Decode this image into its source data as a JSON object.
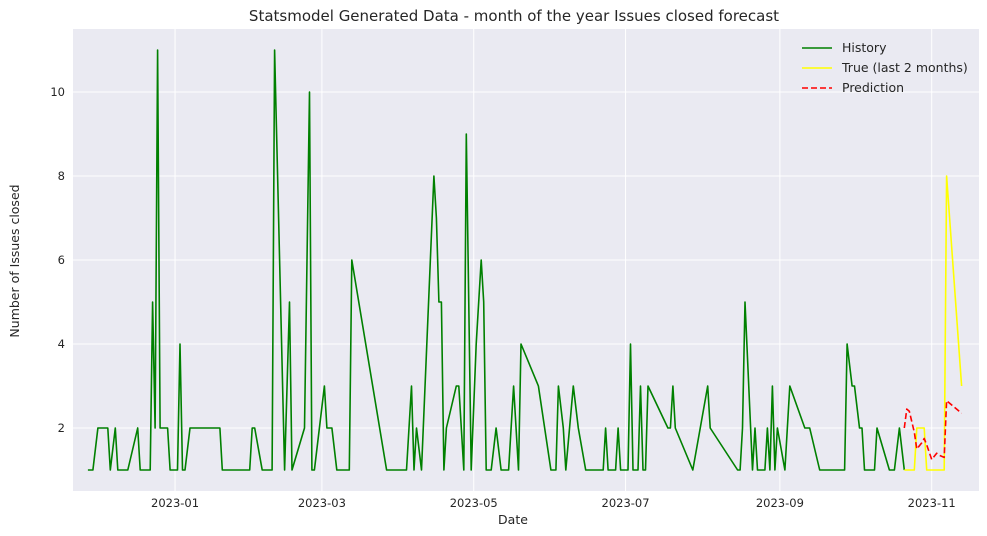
{
  "chart_data": {
    "type": "line",
    "title": "Statsmodel Generated Data - month of the year Issues closed forecast",
    "xlabel": "Date",
    "ylabel": "Number of Issues closed",
    "xlim": [
      "2022-11-21",
      "2023-11-20"
    ],
    "ylim": [
      0.5,
      11.5
    ],
    "yticks": [
      2,
      4,
      6,
      8,
      10
    ],
    "xticks": [
      "2023-01-01",
      "2023-03-01",
      "2023-05-01",
      "2023-07-01",
      "2023-09-01",
      "2023-11-01"
    ],
    "xtick_labels": [
      "2023-01",
      "2023-03",
      "2023-05",
      "2023-07",
      "2023-09",
      "2023-11"
    ],
    "grid": true,
    "legend_position": "top-right",
    "background": "#eaeaf2",
    "series": [
      {
        "name": "History",
        "color": "#008000",
        "style": "solid",
        "points": [
          [
            "2022-11-27",
            1
          ],
          [
            "2022-11-29",
            1
          ],
          [
            "2022-12-01",
            2
          ],
          [
            "2022-12-05",
            2
          ],
          [
            "2022-12-06",
            1
          ],
          [
            "2022-12-08",
            2
          ],
          [
            "2022-12-09",
            1
          ],
          [
            "2022-12-13",
            1
          ],
          [
            "2022-12-17",
            2
          ],
          [
            "2022-12-18",
            1
          ],
          [
            "2022-12-22",
            1
          ],
          [
            "2022-12-23",
            5
          ],
          [
            "2022-12-24",
            2
          ],
          [
            "2022-12-25",
            11
          ],
          [
            "2022-12-26",
            2
          ],
          [
            "2022-12-29",
            2
          ],
          [
            "2022-12-30",
            1
          ],
          [
            "2023-01-02",
            1
          ],
          [
            "2023-01-03",
            4
          ],
          [
            "2023-01-04",
            1
          ],
          [
            "2023-01-05",
            1
          ],
          [
            "2023-01-07",
            2
          ],
          [
            "2023-01-19",
            2
          ],
          [
            "2023-01-20",
            1
          ],
          [
            "2023-01-31",
            1
          ],
          [
            "2023-02-01",
            2
          ],
          [
            "2023-02-02",
            2
          ],
          [
            "2023-02-05",
            1
          ],
          [
            "2023-02-09",
            1
          ],
          [
            "2023-02-10",
            11
          ],
          [
            "2023-02-14",
            1
          ],
          [
            "2023-02-16",
            5
          ],
          [
            "2023-02-17",
            1
          ],
          [
            "2023-02-22",
            2
          ],
          [
            "2023-02-24",
            10
          ],
          [
            "2023-02-25",
            1
          ],
          [
            "2023-02-26",
            1
          ],
          [
            "2023-03-02",
            3
          ],
          [
            "2023-03-03",
            2
          ],
          [
            "2023-03-05",
            2
          ],
          [
            "2023-03-07",
            1
          ],
          [
            "2023-03-12",
            1
          ],
          [
            "2023-03-13",
            6
          ],
          [
            "2023-03-27",
            1
          ],
          [
            "2023-04-04",
            1
          ],
          [
            "2023-04-06",
            3
          ],
          [
            "2023-04-07",
            1
          ],
          [
            "2023-04-08",
            2
          ],
          [
            "2023-04-10",
            1
          ],
          [
            "2023-04-15",
            8
          ],
          [
            "2023-04-16",
            7
          ],
          [
            "2023-04-17",
            5
          ],
          [
            "2023-04-18",
            5
          ],
          [
            "2023-04-19",
            1
          ],
          [
            "2023-04-20",
            2
          ],
          [
            "2023-04-24",
            3
          ],
          [
            "2023-04-25",
            3
          ],
          [
            "2023-04-27",
            1
          ],
          [
            "2023-04-28",
            9
          ],
          [
            "2023-04-30",
            1
          ],
          [
            "2023-05-02",
            4
          ],
          [
            "2023-05-04",
            6
          ],
          [
            "2023-05-05",
            5
          ],
          [
            "2023-05-06",
            1
          ],
          [
            "2023-05-08",
            1
          ],
          [
            "2023-05-10",
            2
          ],
          [
            "2023-05-12",
            1
          ],
          [
            "2023-05-15",
            1
          ],
          [
            "2023-05-17",
            3
          ],
          [
            "2023-05-19",
            1
          ],
          [
            "2023-05-20",
            4
          ],
          [
            "2023-05-27",
            3
          ],
          [
            "2023-06-01",
            1
          ],
          [
            "2023-06-03",
            1
          ],
          [
            "2023-06-04",
            3
          ],
          [
            "2023-06-06",
            2
          ],
          [
            "2023-06-07",
            1
          ],
          [
            "2023-06-10",
            3
          ],
          [
            "2023-06-12",
            2
          ],
          [
            "2023-06-15",
            1
          ],
          [
            "2023-06-22",
            1
          ],
          [
            "2023-06-23",
            2
          ],
          [
            "2023-06-24",
            1
          ],
          [
            "2023-06-27",
            1
          ],
          [
            "2023-06-28",
            2
          ],
          [
            "2023-06-29",
            1
          ],
          [
            "2023-07-02",
            1
          ],
          [
            "2023-07-03",
            4
          ],
          [
            "2023-07-04",
            1
          ],
          [
            "2023-07-06",
            1
          ],
          [
            "2023-07-07",
            3
          ],
          [
            "2023-07-08",
            1
          ],
          [
            "2023-07-09",
            1
          ],
          [
            "2023-07-10",
            3
          ],
          [
            "2023-07-18",
            2
          ],
          [
            "2023-07-19",
            2
          ],
          [
            "2023-07-20",
            3
          ],
          [
            "2023-07-21",
            2
          ],
          [
            "2023-07-28",
            1
          ],
          [
            "2023-08-03",
            3
          ],
          [
            "2023-08-04",
            2
          ],
          [
            "2023-08-15",
            1
          ],
          [
            "2023-08-16",
            1
          ],
          [
            "2023-08-17",
            2
          ],
          [
            "2023-08-18",
            5
          ],
          [
            "2023-08-21",
            1
          ],
          [
            "2023-08-22",
            2
          ],
          [
            "2023-08-23",
            1
          ],
          [
            "2023-08-26",
            1
          ],
          [
            "2023-08-27",
            2
          ],
          [
            "2023-08-28",
            1
          ],
          [
            "2023-08-29",
            3
          ],
          [
            "2023-08-30",
            1
          ],
          [
            "2023-08-31",
            2
          ],
          [
            "2023-09-03",
            1
          ],
          [
            "2023-09-05",
            3
          ],
          [
            "2023-09-11",
            2
          ],
          [
            "2023-09-13",
            2
          ],
          [
            "2023-09-17",
            1
          ],
          [
            "2023-09-27",
            1
          ],
          [
            "2023-09-28",
            4
          ],
          [
            "2023-09-30",
            3
          ],
          [
            "2023-10-01",
            3
          ],
          [
            "2023-10-03",
            2
          ],
          [
            "2023-10-04",
            2
          ],
          [
            "2023-10-05",
            1
          ],
          [
            "2023-10-09",
            1
          ],
          [
            "2023-10-10",
            2
          ],
          [
            "2023-10-15",
            1
          ],
          [
            "2023-10-17",
            1
          ],
          [
            "2023-10-19",
            2
          ],
          [
            "2023-10-21",
            1
          ]
        ]
      },
      {
        "name": "True (last 2 months)",
        "color": "#ffff00",
        "style": "solid",
        "points": [
          [
            "2023-10-21",
            1
          ],
          [
            "2023-10-25",
            1
          ],
          [
            "2023-10-26",
            2
          ],
          [
            "2023-10-28",
            2
          ],
          [
            "2023-10-29",
            2
          ],
          [
            "2023-10-30",
            1
          ],
          [
            "2023-11-06",
            1
          ],
          [
            "2023-11-07",
            8
          ],
          [
            "2023-11-13",
            3
          ]
        ]
      },
      {
        "name": "Prediction",
        "color": "#ff0000",
        "style": "dashed",
        "points": [
          [
            "2023-10-21",
            2.0
          ],
          [
            "2023-10-22",
            2.45
          ],
          [
            "2023-10-23",
            2.4
          ],
          [
            "2023-10-25",
            1.9
          ],
          [
            "2023-10-26",
            1.5
          ],
          [
            "2023-10-28",
            1.65
          ],
          [
            "2023-10-29",
            1.75
          ],
          [
            "2023-10-30",
            1.6
          ],
          [
            "2023-11-01",
            1.25
          ],
          [
            "2023-11-03",
            1.4
          ],
          [
            "2023-11-04",
            1.35
          ],
          [
            "2023-11-06",
            1.3
          ],
          [
            "2023-11-07",
            2.65
          ],
          [
            "2023-11-09",
            2.55
          ],
          [
            "2023-11-13",
            2.35
          ]
        ]
      }
    ]
  }
}
